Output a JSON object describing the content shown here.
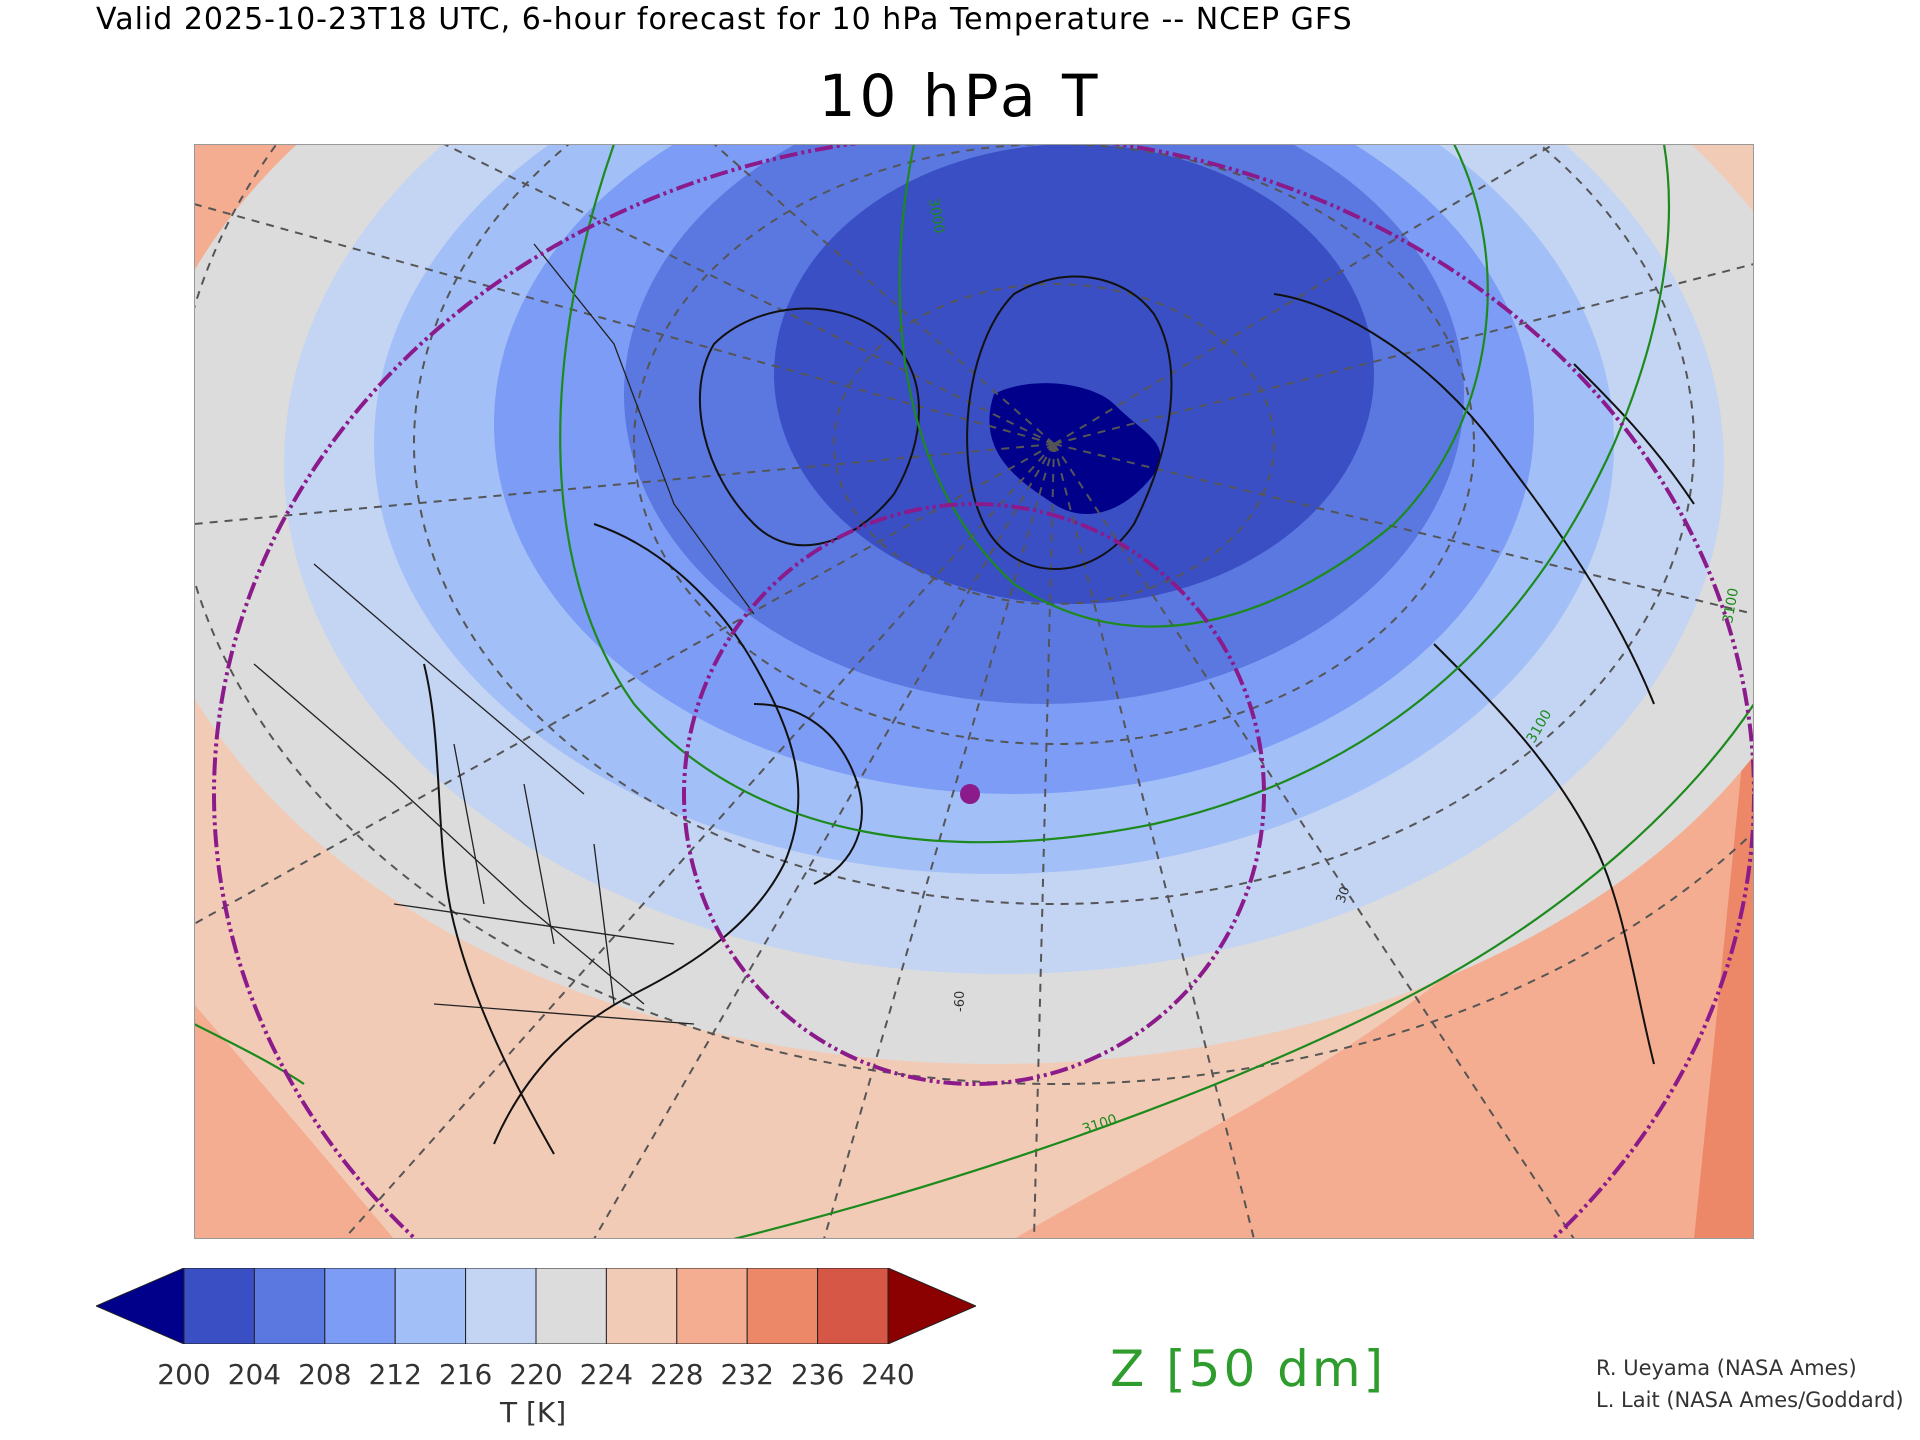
{
  "header": {
    "valid_line": "Valid 2025-10-23T18 UTC, 6-hour forecast for 10 hPa Temperature -- NCEP GFS",
    "title": "10 hPa T"
  },
  "colorbar": {
    "ticks": [
      "200",
      "204",
      "208",
      "212",
      "216",
      "220",
      "224",
      "228",
      "232",
      "236",
      "240"
    ],
    "colors": [
      "#00008b",
      "#3a4fc4",
      "#5a78e0",
      "#7c9cf5",
      "#a3bff7",
      "#c4d4f3",
      "#dcdcdc",
      "#f2cbb7",
      "#f4ad90",
      "#ec8868",
      "#d65745",
      "#8b0000"
    ],
    "label": "T [K]"
  },
  "contour_legend": {
    "label": "Z [50 dm]",
    "color": "#2e9d2e"
  },
  "map_labels": {
    "height_contour_a": "3100",
    "height_contour_b": "3100",
    "height_contour_c": "3000",
    "meridian_label": "-60",
    "latitude_label": "30"
  },
  "credits": {
    "line1": "R. Ueyama (NASA Ames)",
    "line2": "L. Lait (NASA Ames/Goddard)"
  }
}
